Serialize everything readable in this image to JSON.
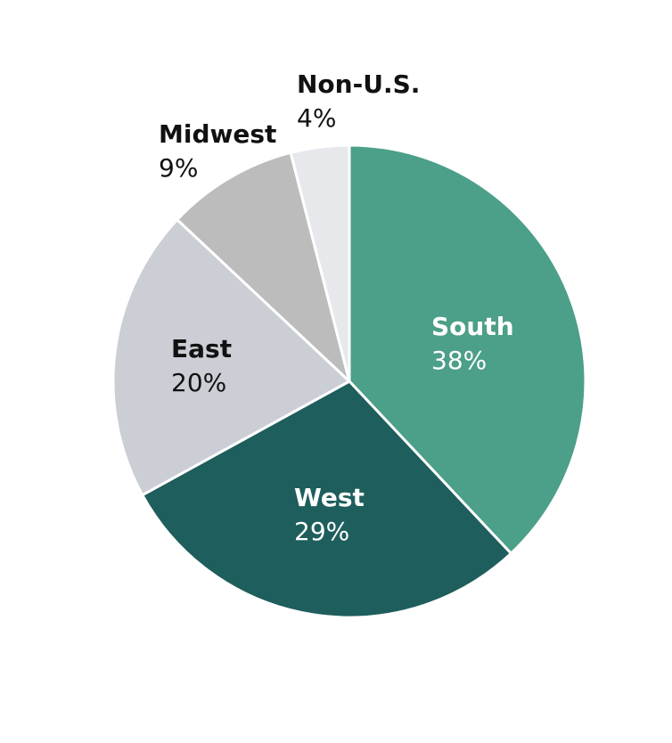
{
  "chart_data": {
    "type": "pie",
    "slices": [
      {
        "label": "South",
        "value": 38,
        "value_label": "38%",
        "color": "#4c9f89",
        "text_color": "#ffffff",
        "label_inside": true
      },
      {
        "label": "West",
        "value": 29,
        "value_label": "29%",
        "color": "#1e5e5c",
        "text_color": "#ffffff",
        "label_inside": true
      },
      {
        "label": "East",
        "value": 20,
        "value_label": "20%",
        "color": "#cbced5",
        "text_color": "#111111",
        "label_inside": true
      },
      {
        "label": "Midwest",
        "value": 9,
        "value_label": "9%",
        "color": "#bcbcbc",
        "text_color": "#111111",
        "label_inside": false
      },
      {
        "label": "Non-U.S.",
        "value": 4,
        "value_label": "4%",
        "color": "#e6e8ec",
        "text_color": "#111111",
        "label_inside": false
      }
    ],
    "start_angle": "12 o'clock",
    "direction": "clockwise",
    "slice_border_color": "#ffffff"
  }
}
